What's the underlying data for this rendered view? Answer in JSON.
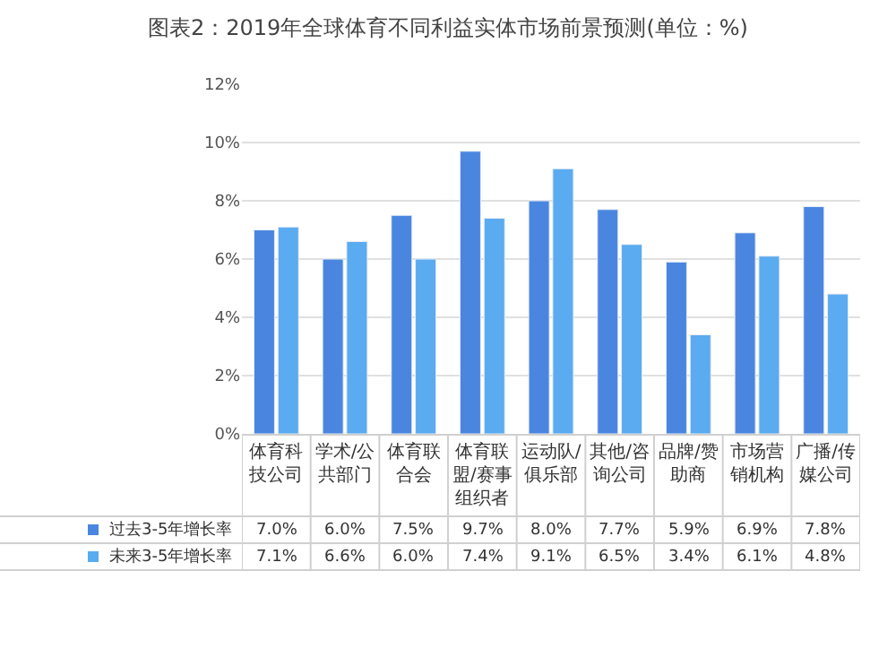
{
  "chart_data": {
    "type": "bar",
    "title": "图表2：2019年全球体育不同利益实体市场前景预测(单位：%)",
    "categories": [
      "体育科技公司",
      "学术/公共部门",
      "体育联合会",
      "体育联盟/赛事组织者",
      "运动队/俱乐部",
      "其他/咨询公司",
      "品牌/赞助商",
      "市场营销机构",
      "广播/传媒公司"
    ],
    "series": [
      {
        "name": "过去3-5年增长率",
        "color": "#4a86e0",
        "values": [
          7.0,
          6.0,
          7.5,
          9.7,
          8.0,
          7.7,
          5.9,
          6.9,
          7.8
        ],
        "value_labels": [
          "7.0%",
          "6.0%",
          "7.5%",
          "9.7%",
          "8.0%",
          "7.7%",
          "5.9%",
          "6.9%",
          "7.8%"
        ]
      },
      {
        "name": "未来3-5年增长率",
        "color": "#5aabf0",
        "values": [
          7.1,
          6.6,
          6.0,
          7.4,
          9.1,
          6.5,
          3.4,
          6.1,
          4.8
        ],
        "value_labels": [
          "7.1%",
          "6.6%",
          "6.0%",
          "7.4%",
          "9.1%",
          "6.5%",
          "3.4%",
          "6.1%",
          "4.8%"
        ]
      }
    ],
    "ylim": [
      0,
      12
    ],
    "yticks": [
      {
        "value": 0,
        "label": "0%"
      },
      {
        "value": 2,
        "label": "2%"
      },
      {
        "value": 4,
        "label": "4%"
      },
      {
        "value": 6,
        "label": "6%"
      },
      {
        "value": 8,
        "label": "8%"
      },
      {
        "value": 10,
        "label": "10%"
      },
      {
        "value": 12,
        "label": "12%"
      }
    ],
    "grid": "y",
    "legend": "bottom left"
  }
}
